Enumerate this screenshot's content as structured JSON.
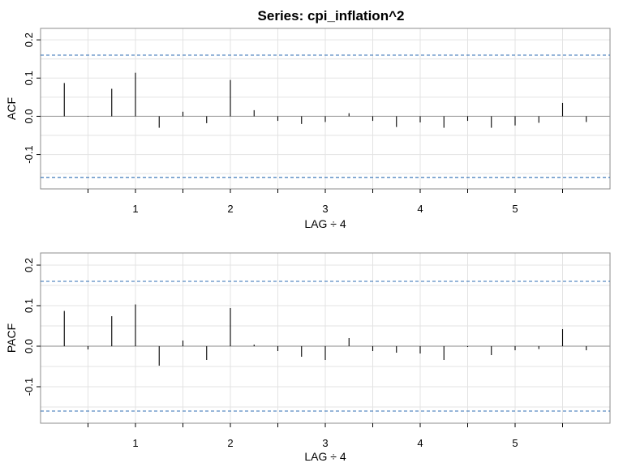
{
  "title": "Series:  cpi_inflation^2",
  "chart_data": [
    {
      "type": "bar",
      "name": "acf",
      "xlabel": "LAG ÷ 4",
      "ylabel": "ACF",
      "xlim": [
        0,
        6
      ],
      "ylim": [
        -0.19,
        0.23
      ],
      "x_ticks": [
        "1",
        "2",
        "3",
        "4",
        "5"
      ],
      "y_ticks": [
        "-0.1",
        "0.0",
        "0.1",
        "0.2"
      ],
      "grid": true,
      "ci": 0.16,
      "x": [
        0.25,
        0.5,
        0.75,
        1.0,
        1.25,
        1.5,
        1.75,
        2.0,
        2.25,
        2.5,
        2.75,
        3.0,
        3.25,
        3.5,
        3.75,
        4.0,
        4.25,
        4.5,
        4.75,
        5.0,
        5.25,
        5.5,
        5.75
      ],
      "values": [
        0.087,
        -0.001,
        0.072,
        0.114,
        -0.03,
        0.012,
        -0.018,
        0.095,
        0.016,
        -0.012,
        -0.02,
        -0.015,
        0.008,
        -0.012,
        -0.028,
        -0.016,
        -0.03,
        -0.012,
        -0.03,
        -0.024,
        -0.017,
        0.035,
        -0.015
      ]
    },
    {
      "type": "bar",
      "name": "pacf",
      "xlabel": "LAG ÷ 4",
      "ylabel": "PACF",
      "xlim": [
        0,
        6
      ],
      "ylim": [
        -0.19,
        0.23
      ],
      "x_ticks": [
        "1",
        "2",
        "3",
        "4",
        "5"
      ],
      "y_ticks": [
        "-0.1",
        "0.0",
        "0.1",
        "0.2"
      ],
      "grid": true,
      "ci": 0.16,
      "x": [
        0.25,
        0.5,
        0.75,
        1.0,
        1.25,
        1.5,
        1.75,
        2.0,
        2.25,
        2.5,
        2.75,
        3.0,
        3.25,
        3.5,
        3.75,
        4.0,
        4.25,
        4.5,
        4.75,
        5.0,
        5.25,
        5.5,
        5.75
      ],
      "values": [
        0.087,
        -0.008,
        0.074,
        0.103,
        -0.048,
        0.014,
        -0.034,
        0.094,
        0.004,
        -0.012,
        -0.026,
        -0.034,
        0.02,
        -0.012,
        -0.016,
        -0.018,
        -0.034,
        -0.002,
        -0.022,
        -0.01,
        -0.007,
        0.042,
        -0.01
      ]
    }
  ],
  "colors": {
    "spike": "#000000",
    "ci": "#2f6eb3",
    "grid": "#e3e3e3",
    "zero": "#a0a0a0",
    "frame": "#8c8c8c"
  }
}
